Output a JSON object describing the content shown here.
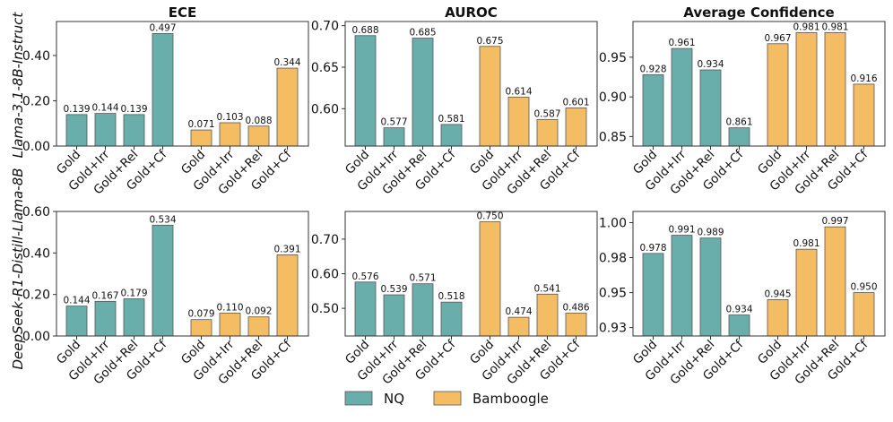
{
  "legend": {
    "items": [
      {
        "name": "NQ",
        "color": "#6aaeac"
      },
      {
        "name": "Bamboogle",
        "color": "#f5bd63"
      }
    ]
  },
  "row_labels": [
    "Llama-3.1-8B-Instruct",
    "DeepSeek-R1-Distill-Llama-8B"
  ],
  "chart_data": [
    {
      "type": "bar",
      "title": "ECE",
      "row": 0,
      "col": 0,
      "categories": [
        "Gold",
        "Gold+Irr",
        "Gold+Rel",
        "Gold+Cf"
      ],
      "series": [
        {
          "name": "NQ",
          "values": [
            0.139,
            0.144,
            0.139,
            0.497
          ],
          "labels": [
            "0.139",
            "0.144",
            "0.139",
            "0.497"
          ]
        },
        {
          "name": "Bamboogle",
          "values": [
            0.071,
            0.103,
            0.088,
            0.344
          ],
          "labels": [
            "0.071",
            "0.103",
            "0.088",
            "0.344"
          ]
        }
      ],
      "ylim": [
        0,
        0.55
      ],
      "yticks": [
        0,
        0.2,
        0.4
      ],
      "ytick_labels": [
        "0.00",
        "0.20",
        "0.40"
      ]
    },
    {
      "type": "bar",
      "title": "AUROC",
      "row": 0,
      "col": 1,
      "categories": [
        "Gold",
        "Gold+Irr",
        "Gold+Rel",
        "Gold+Cf"
      ],
      "series": [
        {
          "name": "NQ",
          "values": [
            0.688,
            0.577,
            0.685,
            0.581
          ],
          "labels": [
            "0.688",
            "0.577",
            "0.685",
            "0.581"
          ]
        },
        {
          "name": "Bamboogle",
          "values": [
            0.675,
            0.614,
            0.587,
            0.601
          ],
          "labels": [
            "0.675",
            "0.614",
            "0.587",
            "0.601"
          ]
        }
      ],
      "ylim": [
        0.555,
        0.705
      ],
      "yticks": [
        0.6,
        0.65,
        0.7
      ],
      "ytick_labels": [
        "0.60",
        "0.65",
        "0.70"
      ]
    },
    {
      "type": "bar",
      "title": "Average Confidence",
      "row": 0,
      "col": 2,
      "categories": [
        "Gold",
        "Gold+Irr",
        "Gold+Rel",
        "Gold+Cf"
      ],
      "series": [
        {
          "name": "NQ",
          "values": [
            0.928,
            0.961,
            0.934,
            0.861
          ],
          "labels": [
            "0.928",
            "0.961",
            "0.934",
            "0.861"
          ]
        },
        {
          "name": "Bamboogle",
          "values": [
            0.967,
            0.981,
            0.981,
            0.916
          ],
          "labels": [
            "0.967",
            "0.981",
            "0.981",
            "0.916"
          ]
        }
      ],
      "ylim": [
        0.838,
        0.995
      ],
      "yticks": [
        0.85,
        0.9,
        0.95
      ],
      "ytick_labels": [
        "0.85",
        "0.90",
        "0.95"
      ]
    },
    {
      "type": "bar",
      "title": "",
      "row": 1,
      "col": 0,
      "categories": [
        "Gold",
        "Gold+Irr",
        "Gold+Rel",
        "Gold+Cf"
      ],
      "series": [
        {
          "name": "NQ",
          "values": [
            0.144,
            0.167,
            0.179,
            0.534
          ],
          "labels": [
            "0.144",
            "0.167",
            "0.179",
            "0.534"
          ]
        },
        {
          "name": "Bamboogle",
          "values": [
            0.079,
            0.11,
            0.092,
            0.391
          ],
          "labels": [
            "0.079",
            "0.110",
            "0.092",
            "0.391"
          ]
        }
      ],
      "ylim": [
        0,
        0.6
      ],
      "yticks": [
        0,
        0.2,
        0.4,
        0.6
      ],
      "ytick_labels": [
        "0.00",
        "0.20",
        "0.40",
        "0.60"
      ]
    },
    {
      "type": "bar",
      "title": "",
      "row": 1,
      "col": 1,
      "categories": [
        "Gold",
        "Gold+Irr",
        "Gold+Rel",
        "Gold+Cf"
      ],
      "series": [
        {
          "name": "NQ",
          "values": [
            0.576,
            0.539,
            0.571,
            0.518
          ],
          "labels": [
            "0.576",
            "0.539",
            "0.571",
            "0.518"
          ]
        },
        {
          "name": "Bamboogle",
          "values": [
            0.75,
            0.474,
            0.541,
            0.486
          ],
          "labels": [
            "0.750",
            "0.474",
            "0.541",
            "0.486"
          ]
        }
      ],
      "ylim": [
        0.42,
        0.78
      ],
      "yticks": [
        0.5,
        0.6,
        0.7
      ],
      "ytick_labels": [
        "0.50",
        "0.60",
        "0.70"
      ]
    },
    {
      "type": "bar",
      "title": "",
      "row": 1,
      "col": 2,
      "categories": [
        "Gold",
        "Gold+Irr",
        "Gold+Rel",
        "Gold+Cf"
      ],
      "series": [
        {
          "name": "NQ",
          "values": [
            0.978,
            0.991,
            0.989,
            0.934
          ],
          "labels": [
            "0.978",
            "0.991",
            "0.989",
            "0.934"
          ]
        },
        {
          "name": "Bamboogle",
          "values": [
            0.945,
            0.981,
            0.997,
            0.95
          ],
          "labels": [
            "0.945",
            "0.981",
            "0.997",
            "0.950"
          ]
        }
      ],
      "ylim": [
        0.919,
        1.008
      ],
      "yticks": [
        0.925,
        0.95,
        0.975,
        1.0
      ],
      "ytick_labels": [
        "0.93",
        "0.95",
        "0.98",
        "1.00"
      ]
    }
  ]
}
